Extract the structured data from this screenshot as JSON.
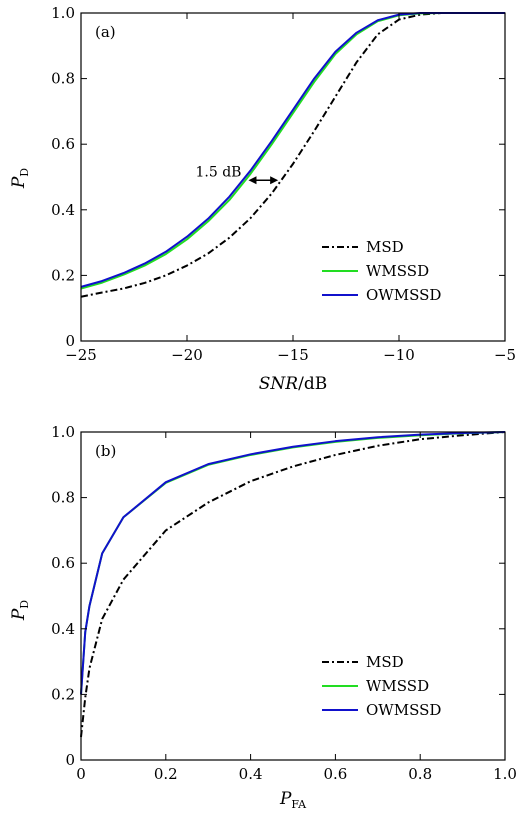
{
  "chart_data": [
    {
      "type": "line",
      "panel_label": "(a)",
      "xlabel": {
        "main": "SNR",
        "suffix": "/dB"
      },
      "ylabel": {
        "main": "P",
        "sub": "D"
      },
      "xlim": [
        -25,
        -5
      ],
      "ylim": [
        0,
        1
      ],
      "xticks": [
        -25,
        -20,
        -15,
        -10,
        -5
      ],
      "xtick_labels": [
        "−25",
        "−20",
        "−15",
        "−10",
        "−5"
      ],
      "yticks": [
        0,
        0.2,
        0.4,
        0.6,
        0.8,
        1.0
      ],
      "ytick_labels": [
        "0",
        "0.2",
        "0.4",
        "0.6",
        "0.8",
        "1.0"
      ],
      "grid": false,
      "legend_position": "lower-right",
      "annotation": {
        "text": "1.5 dB",
        "y": 0.49,
        "x_from": -17.1,
        "x_to": -15.7
      },
      "series": [
        {
          "name": "MSD",
          "color": "#000000",
          "dash": "dashdot",
          "x": [
            -25,
            -24,
            -23,
            -22,
            -21,
            -20,
            -19,
            -18,
            -17,
            -16,
            -15,
            -14,
            -13,
            -12,
            -11,
            -10,
            -9,
            -8,
            -7,
            -6,
            -5
          ],
          "y": [
            0.135,
            0.148,
            0.16,
            0.177,
            0.2,
            0.23,
            0.267,
            0.315,
            0.375,
            0.45,
            0.54,
            0.64,
            0.745,
            0.85,
            0.935,
            0.98,
            0.995,
            1.0,
            1.0,
            1.0,
            1.0
          ]
        },
        {
          "name": "WMSSD",
          "color": "#22dd22",
          "dash": "solid",
          "x": [
            -25,
            -24,
            -23,
            -22,
            -21,
            -20,
            -19,
            -18,
            -17,
            -16,
            -15,
            -14,
            -13,
            -12,
            -11,
            -10,
            -9,
            -8,
            -7,
            -6,
            -5
          ],
          "y": [
            0.16,
            0.178,
            0.202,
            0.23,
            0.265,
            0.31,
            0.365,
            0.43,
            0.51,
            0.6,
            0.695,
            0.79,
            0.875,
            0.935,
            0.975,
            0.993,
            0.999,
            1.0,
            1.0,
            1.0,
            1.0
          ]
        },
        {
          "name": "OWMSSD",
          "color": "#1111cc",
          "dash": "solid",
          "x": [
            -25,
            -24,
            -23,
            -22,
            -21,
            -20,
            -19,
            -18,
            -17,
            -16,
            -15,
            -14,
            -13,
            -12,
            -11,
            -10,
            -9,
            -8,
            -7,
            -6,
            -5
          ],
          "y": [
            0.165,
            0.183,
            0.207,
            0.236,
            0.272,
            0.318,
            0.373,
            0.44,
            0.52,
            0.61,
            0.705,
            0.8,
            0.882,
            0.94,
            0.978,
            0.995,
            1.0,
            1.0,
            1.0,
            1.0,
            1.0
          ]
        }
      ]
    },
    {
      "type": "line",
      "panel_label": "(b)",
      "xlabel": {
        "main": "P",
        "sub": "FA"
      },
      "ylabel": {
        "main": "P",
        "sub": "D"
      },
      "xlim": [
        0,
        1
      ],
      "ylim": [
        0,
        1
      ],
      "xticks": [
        0,
        0.2,
        0.4,
        0.6,
        0.8,
        1.0
      ],
      "xtick_labels": [
        "0",
        "0.2",
        "0.4",
        "0.6",
        "0.8",
        "1.0"
      ],
      "yticks": [
        0,
        0.2,
        0.4,
        0.6,
        0.8,
        1.0
      ],
      "ytick_labels": [
        "0",
        "0.2",
        "0.4",
        "0.6",
        "0.8",
        "1.0"
      ],
      "grid": false,
      "legend_position": "lower-right",
      "series": [
        {
          "name": "MSD",
          "color": "#000000",
          "dash": "dashdot",
          "x": [
            0,
            0.01,
            0.02,
            0.05,
            0.1,
            0.2,
            0.3,
            0.4,
            0.5,
            0.6,
            0.7,
            0.8,
            0.9,
            1.0
          ],
          "y": [
            0.07,
            0.19,
            0.28,
            0.43,
            0.55,
            0.7,
            0.785,
            0.85,
            0.895,
            0.93,
            0.958,
            0.978,
            0.99,
            1.0
          ]
        },
        {
          "name": "WMSSD",
          "color": "#22dd22",
          "dash": "solid",
          "x": [
            0,
            0.01,
            0.02,
            0.05,
            0.1,
            0.2,
            0.3,
            0.4,
            0.5,
            0.6,
            0.7,
            0.8,
            0.9,
            1.0
          ],
          "y": [
            0.2,
            0.39,
            0.47,
            0.63,
            0.74,
            0.845,
            0.9,
            0.93,
            0.953,
            0.97,
            0.982,
            0.99,
            0.996,
            1.0
          ]
        },
        {
          "name": "OWMSSD",
          "color": "#1111cc",
          "dash": "solid",
          "x": [
            0,
            0.01,
            0.02,
            0.05,
            0.1,
            0.2,
            0.3,
            0.4,
            0.5,
            0.6,
            0.7,
            0.8,
            0.9,
            1.0
          ],
          "y": [
            0.2,
            0.39,
            0.47,
            0.63,
            0.74,
            0.847,
            0.902,
            0.932,
            0.955,
            0.972,
            0.984,
            0.992,
            0.997,
            1.0
          ]
        }
      ]
    }
  ]
}
